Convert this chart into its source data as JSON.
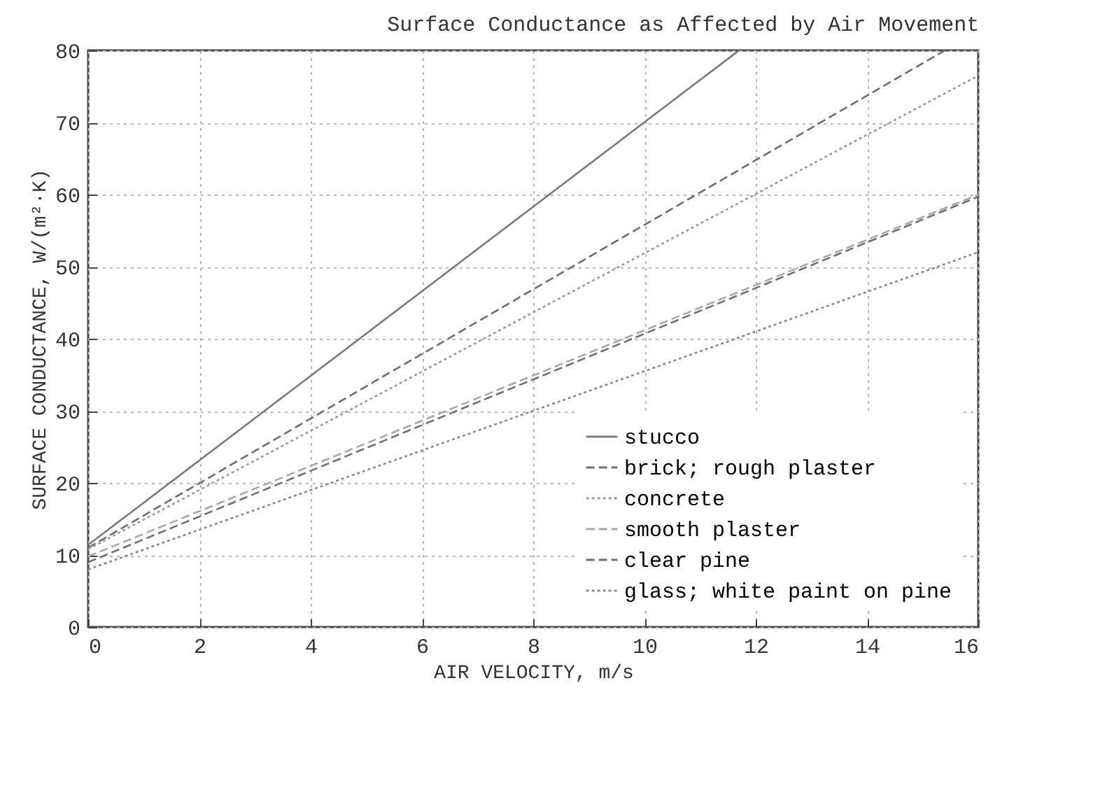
{
  "chart_data": {
    "type": "line",
    "title": "Surface Conductance as Affected by Air Movement",
    "xlabel": "AIR VELOCITY, m/s",
    "ylabel": "SURFACE CONDUCTANCE, W/(m²·K)",
    "xlim": [
      0,
      16
    ],
    "xticks": [
      0,
      2,
      4,
      6,
      8,
      10,
      12,
      14,
      16
    ],
    "ylim": [
      0,
      80
    ],
    "yticks": [
      0,
      10,
      20,
      30,
      40,
      50,
      60,
      70,
      80
    ],
    "grid": true,
    "legend": "bottom right",
    "marker": "none",
    "series": [
      {
        "name": "stucco",
        "color": "#7a7a7a",
        "line_style": "solid",
        "x": [
          0,
          11.7
        ],
        "values": [
          11.4,
          80
        ]
      },
      {
        "name": "brick; rough plaster",
        "color": "#6e6e6e",
        "line_style": "dashed",
        "x": [
          0,
          15.4
        ],
        "values": [
          11,
          80
        ]
      },
      {
        "name": "concrete",
        "color": "#9a9a9a",
        "line_style": "dotted",
        "x": [
          0,
          16
        ],
        "values": [
          10.8,
          76.5
        ]
      },
      {
        "name": "smooth plaster",
        "color": "#a8a8a8",
        "line_style": "dashed",
        "x": [
          0,
          16
        ],
        "values": [
          9.8,
          60
        ]
      },
      {
        "name": "clear pine",
        "color": "#707070",
        "line_style": "dashed",
        "x": [
          0,
          16
        ],
        "values": [
          9,
          59.7
        ]
      },
      {
        "name": "glass; white paint on pine",
        "color": "#8a8a8a",
        "line_style": "dotted",
        "x": [
          0,
          16
        ],
        "values": [
          8,
          52
        ]
      }
    ]
  }
}
